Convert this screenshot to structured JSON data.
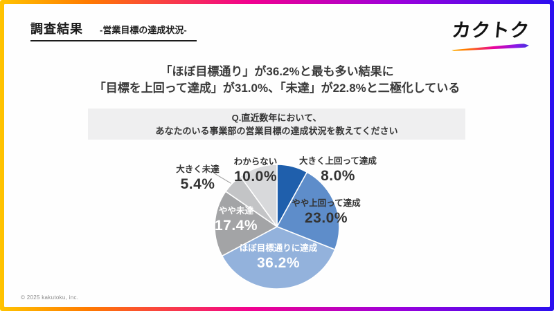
{
  "header": {
    "title": "調査結果",
    "subtitle": "-営業目標の達成状況-",
    "logo_text": "カクトク"
  },
  "headline": {
    "line1": "「ほぼ目標通り」が36.2%と最も多い結果に",
    "line2": "「目標を上回って達成」が31.0%、「未達」が22.8%と二極化している"
  },
  "question": {
    "line1": "Q.直近数年において、",
    "line2": "あなたのいる事業部の営業目標の達成状況を教えてください"
  },
  "chart_data": {
    "type": "pie",
    "title": "Q.直近数年において、あなたのいる事業部の営業目標の達成状況を教えてください",
    "start_angle_deg": 0,
    "direction": "clockwise",
    "total": 100,
    "slices": [
      {
        "id": "greatly-exceeded",
        "label": "大きく上回って達成",
        "value": 8.0,
        "pct": "8.0%",
        "color": "#1F5FAC",
        "label_placement": "outside"
      },
      {
        "id": "slightly-exceeded",
        "label": "やや上回って達成",
        "value": 23.0,
        "pct": "23.0%",
        "color": "#5E8DCA",
        "label_placement": "outside"
      },
      {
        "id": "roughly-on-target",
        "label": "ほぼ目標通りに達成",
        "value": 36.2,
        "pct": "36.2%",
        "color": "#93B2DC",
        "label_placement": "inside"
      },
      {
        "id": "slightly-missed",
        "label": "やや未達",
        "value": 17.4,
        "pct": "17.4%",
        "color": "#A3A4A6",
        "label_placement": "inside"
      },
      {
        "id": "greatly-missed",
        "label": "大きく未達",
        "value": 5.4,
        "pct": "5.4%",
        "color": "#C3C4C6",
        "label_placement": "outside-leader"
      },
      {
        "id": "dont-know",
        "label": "わからない",
        "value": 10.0,
        "pct": "10.0%",
        "color": "#D8D9DB",
        "label_placement": "outside"
      }
    ]
  },
  "footer": {
    "copyright": "© 2025 kakutoku, inc."
  },
  "colors": {
    "frame_gradient_start": "#FFC400",
    "frame_gradient_mid": "#F2008F",
    "frame_gradient_end": "#2A0FF0",
    "question_box_bg": "#EFEFF0",
    "slice_separator": "#FFFFFF",
    "text_dark": "#333333"
  }
}
